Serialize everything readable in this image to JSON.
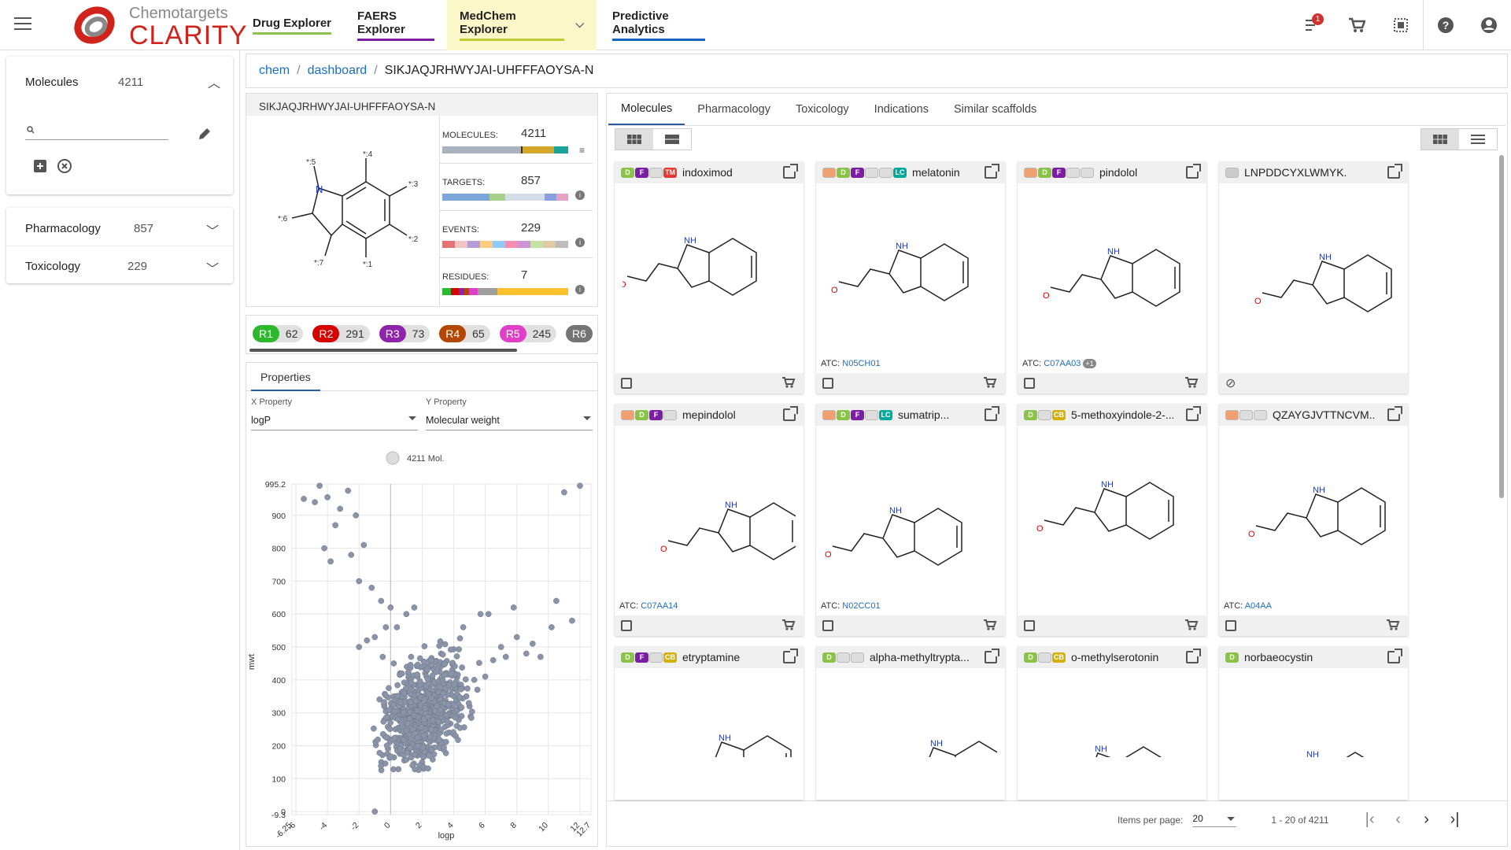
{
  "header": {
    "brand_sub": "Chemotargets",
    "brand_main": "CLARITY",
    "nav": [
      {
        "label": "Drug Explorer",
        "color": "#8bc34a"
      },
      {
        "label": "FAERS Explorer",
        "color": "#7b1fa2"
      },
      {
        "label": "MedChem Explorer",
        "color": "#c0ca33",
        "active": true
      },
      {
        "label": "Predictive Analytics",
        "color": "#1565c0"
      }
    ],
    "notif_count": "1"
  },
  "sidebar": {
    "molecules_label": "Molecules",
    "molecules_count": "4211",
    "search_placeholder": "",
    "pharmacology_label": "Pharmacology",
    "pharmacology_count": "857",
    "toxicology_label": "Toxicology",
    "toxicology_count": "229"
  },
  "breadcrumb": {
    "c1": "chem",
    "c2": "dashboard",
    "c3": "SIKJAQJRHWYJAI-UHFFFAOYSA-N"
  },
  "scaffold": {
    "title": "SIKJAQJRHWYJAI-UHFFFAOYSA-N",
    "stats": [
      {
        "label": "MOLECULES:",
        "value": "4211"
      },
      {
        "label": "TARGETS:",
        "value": "857"
      },
      {
        "label": "EVENTS:",
        "value": "229"
      },
      {
        "label": "RESIDUES:",
        "value": "7"
      }
    ],
    "rlabels": [
      "*:5",
      "*:4",
      "*:3",
      "*:6",
      "*:2",
      "*:7",
      "*:1"
    ]
  },
  "rgroups": [
    {
      "r": "R1",
      "n": "62",
      "color": "#2eb82e"
    },
    {
      "r": "R2",
      "n": "291",
      "color": "#d50000"
    },
    {
      "r": "R3",
      "n": "73",
      "color": "#8e24aa"
    },
    {
      "r": "R4",
      "n": "65",
      "color": "#b34700"
    },
    {
      "r": "R5",
      "n": "245",
      "color": "#e040c8"
    },
    {
      "r": "R6",
      "n": "",
      "color": "#757575"
    }
  ],
  "properties": {
    "tab": "Properties",
    "x_label": "X Property",
    "x_value": "logP",
    "y_label": "Y Property",
    "y_value": "Molecular weight",
    "legend": "4211 Mol."
  },
  "chart_data": {
    "type": "scatter",
    "xlabel": "logp",
    "ylabel": "mwt",
    "xlim": [
      -6.25,
      12.7
    ],
    "ylim": [
      -9.3,
      995.2
    ],
    "xticks": [
      "-6.25",
      "-6",
      "-4",
      "-2",
      "0",
      "2",
      "4",
      "6",
      "8",
      "10",
      "12",
      "12.7"
    ],
    "yticks": [
      "995.2",
      "900",
      "800",
      "700",
      "600",
      "500",
      "400",
      "300",
      "200",
      "100",
      "0",
      "-9.3"
    ],
    "series": [
      {
        "name": "4211 Mol.",
        "color": "#8a93a8",
        "points": [
          [
            -5.5,
            950
          ],
          [
            -4.5,
            990
          ],
          [
            -4.8,
            940
          ],
          [
            -4,
            955
          ],
          [
            -3.2,
            920
          ],
          [
            -2.7,
            975
          ],
          [
            -3.5,
            870
          ],
          [
            -2.2,
            900
          ],
          [
            -4.2,
            800
          ],
          [
            -3.8,
            760
          ],
          [
            -2.5,
            780
          ],
          [
            -1.7,
            810
          ],
          [
            -2,
            700
          ],
          [
            -1.2,
            680
          ],
          [
            -0.6,
            640
          ],
          [
            0,
            620
          ],
          [
            0.4,
            560
          ],
          [
            1,
            600
          ],
          [
            1.5,
            620
          ],
          [
            -1.5,
            520
          ],
          [
            -2,
            500
          ],
          [
            -0.5,
            470
          ],
          [
            0.2,
            450
          ],
          [
            0.6,
            420
          ],
          [
            1.2,
            400
          ],
          [
            1.8,
            380
          ],
          [
            2.3,
            360
          ],
          [
            2.8,
            340
          ],
          [
            3.5,
            330
          ],
          [
            4,
            310
          ],
          [
            4.5,
            290
          ],
          [
            5,
            320
          ],
          [
            5.5,
            370
          ],
          [
            6,
            410
          ],
          [
            6.5,
            460
          ],
          [
            7,
            500
          ],
          [
            8,
            530
          ],
          [
            9,
            510
          ],
          [
            10.2,
            560
          ],
          [
            11.5,
            580
          ],
          [
            11,
            970
          ],
          [
            12,
            990
          ],
          [
            0.3,
            350
          ],
          [
            0.8,
            300
          ],
          [
            1.1,
            250
          ],
          [
            1.4,
            200
          ],
          [
            1.7,
            170
          ],
          [
            2,
            150
          ],
          [
            2.3,
            180
          ],
          [
            2.6,
            220
          ],
          [
            3,
            260
          ],
          [
            3.3,
            280
          ],
          [
            2.1,
            130
          ],
          [
            1.5,
            320
          ],
          [
            2.4,
            300
          ],
          [
            3.1,
            200
          ],
          [
            3.7,
            240
          ],
          [
            4.2,
            260
          ],
          [
            0.5,
            280
          ],
          [
            0.9,
            230
          ],
          [
            1.9,
            260
          ],
          [
            2.7,
            290
          ],
          [
            4.8,
            350
          ],
          [
            5.3,
            400
          ],
          [
            3.9,
            430
          ],
          [
            6.2,
            600
          ],
          [
            7.3,
            470
          ],
          [
            8.6,
            480
          ],
          [
            9.5,
            470
          ],
          [
            -0.3,
            560
          ],
          [
            -1,
            530
          ],
          [
            5.7,
            600
          ],
          [
            2.2,
            420
          ],
          [
            1.3,
            470
          ],
          [
            3.2,
            480
          ],
          [
            4.6,
            560
          ],
          [
            7.8,
            620
          ],
          [
            10.5,
            640
          ],
          [
            -1,
            0
          ]
        ]
      }
    ]
  },
  "molecules": {
    "tabs": [
      "Molecules",
      "Pharmacology",
      "Toxicology",
      "Indications",
      "Similar scaffolds"
    ],
    "cards": [
      {
        "name": "indoximod",
        "atc": "",
        "atc_code": ""
      },
      {
        "name": "melatonin",
        "atc": "ATC: ",
        "atc_code": "N05CH01"
      },
      {
        "name": "pindolol",
        "atc": "ATC: ",
        "atc_code": "C07AA03"
      },
      {
        "name": "LNPDDCYXLWMYK...",
        "atc": "",
        "atc_code": ""
      },
      {
        "name": "mepindolol",
        "atc": "ATC: ",
        "atc_code": "C07AA14"
      },
      {
        "name": "sumatrip...",
        "atc": "ATC: ",
        "atc_code": "N02CC01"
      },
      {
        "name": "5-methoxyindole-2-...",
        "atc": "",
        "atc_code": ""
      },
      {
        "name": "QZAYGJVTTNCVM...",
        "atc": "ATC: ",
        "atc_code": "A04AA"
      },
      {
        "name": "etryptamine",
        "atc": "",
        "atc_code": ""
      },
      {
        "name": "alpha-methyltrypta...",
        "atc": "",
        "atc_code": ""
      },
      {
        "name": "o-methylserotonin",
        "atc": "",
        "atc_code": ""
      },
      {
        "name": "norbaeocystin",
        "atc": "",
        "atc_code": ""
      }
    ],
    "plus_badge": "+1"
  },
  "pager": {
    "items_label": "Items per page:",
    "per_page": "20",
    "range": "1 - 20 of 4211"
  }
}
